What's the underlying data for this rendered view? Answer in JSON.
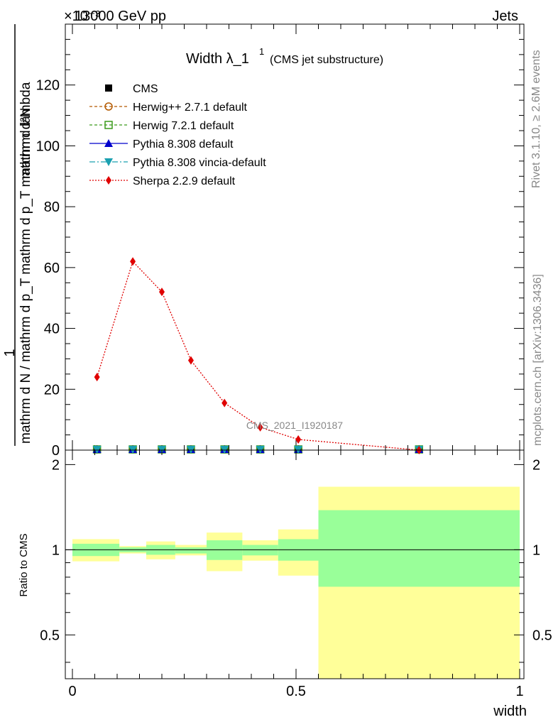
{
  "header": {
    "left": "13000 GeV pp",
    "right": "Jets",
    "exponent": "×10⁻³"
  },
  "side": {
    "rivet": "Rivet 3.1.10, ≥ 2.6M events",
    "mcplots": "mcplots.cern.ch [arXiv:1306.3436]"
  },
  "chart_data": [
    {
      "type": "line",
      "title_main": "Width λ_1",
      "title_sup": "1",
      "title_sub": "(CMS jet substructure)",
      "watermark": "CMS_2021_I1920187",
      "ylabel_top": "1",
      "ylabel_bottom": "mathrm d N / mathrm d p_T mathrm d p_T mathrm d lambda",
      "ylabel_top_num": "mathrm d²N",
      "y_scale_factor": "×10⁻³",
      "ylim": [
        0,
        140
      ],
      "yticks": [
        0,
        20,
        40,
        60,
        80,
        100,
        120
      ],
      "xlim": [
        0,
        1
      ],
      "legend_position": "top-left",
      "legend": [
        {
          "name": "CMS",
          "color": "#000000",
          "marker": "square",
          "dash": ""
        },
        {
          "name": "Herwig++ 2.7.1 default",
          "color": "#b35900",
          "marker": "circle-open",
          "dash": "4,3"
        },
        {
          "name": "Herwig 7.2.1 default",
          "color": "#3a9a1a",
          "marker": "square-open",
          "dash": "4,3"
        },
        {
          "name": "Pythia 8.308 default",
          "color": "#0000cc",
          "marker": "triangle-up",
          "dash": ""
        },
        {
          "name": "Pythia 8.308 vincia-default",
          "color": "#1aa0b0",
          "marker": "triangle-down",
          "dash": "8,3,2,3"
        },
        {
          "name": "Sherpa 2.2.9 default",
          "color": "#e00000",
          "marker": "diamond",
          "dash": "2,2"
        }
      ],
      "series": [
        {
          "name": "Sherpa 2.2.9 default",
          "x": [
            0.055,
            0.135,
            0.2,
            0.265,
            0.34,
            0.42,
            0.505,
            0.775
          ],
          "values": [
            24,
            62,
            52,
            29.5,
            15.5,
            7.5,
            3.5,
            0
          ]
        },
        {
          "name": "CMS",
          "x": [
            0.055,
            0.135,
            0.2,
            0.265,
            0.34,
            0.42,
            0.505,
            0.775
          ],
          "values": [
            0,
            0,
            0,
            0,
            0,
            0,
            0,
            0
          ]
        }
      ]
    },
    {
      "type": "area",
      "ylabel": "Ratio to CMS",
      "xlabel": "width",
      "xlim": [
        0,
        1
      ],
      "xticks": [
        0,
        0.5,
        1
      ],
      "xtick_labels": [
        "0",
        "0.5",
        "1"
      ],
      "ylim": [
        0.35,
        2.25
      ],
      "yticks": [
        0.5,
        1,
        2
      ],
      "ytick_labels": [
        "0.5",
        "1",
        "2"
      ],
      "bins": [
        {
          "x0": 0.0,
          "x1": 0.105,
          "green": [
            0.95,
            1.05
          ],
          "yellow": [
            0.91,
            1.09
          ]
        },
        {
          "x0": 0.105,
          "x1": 0.165,
          "green": [
            0.98,
            1.02
          ],
          "yellow": [
            0.97,
            1.03
          ]
        },
        {
          "x0": 0.165,
          "x1": 0.23,
          "green": [
            0.96,
            1.04
          ],
          "yellow": [
            0.925,
            1.07
          ]
        },
        {
          "x0": 0.23,
          "x1": 0.3,
          "green": [
            0.97,
            1.02
          ],
          "yellow": [
            0.955,
            1.04
          ]
        },
        {
          "x0": 0.3,
          "x1": 0.38,
          "green": [
            0.92,
            1.08
          ],
          "yellow": [
            0.84,
            1.15
          ]
        },
        {
          "x0": 0.38,
          "x1": 0.46,
          "green": [
            0.955,
            1.04
          ],
          "yellow": [
            0.915,
            1.08
          ]
        },
        {
          "x0": 0.46,
          "x1": 0.55,
          "green": [
            0.915,
            1.09
          ],
          "yellow": [
            0.81,
            1.18
          ]
        },
        {
          "x0": 0.55,
          "x1": 1.0,
          "green": [
            0.74,
            1.38
          ],
          "yellow": [
            0.35,
            1.67
          ]
        }
      ],
      "band_colors": {
        "inner": "#99ff99",
        "outer": "#ffff99"
      }
    }
  ]
}
